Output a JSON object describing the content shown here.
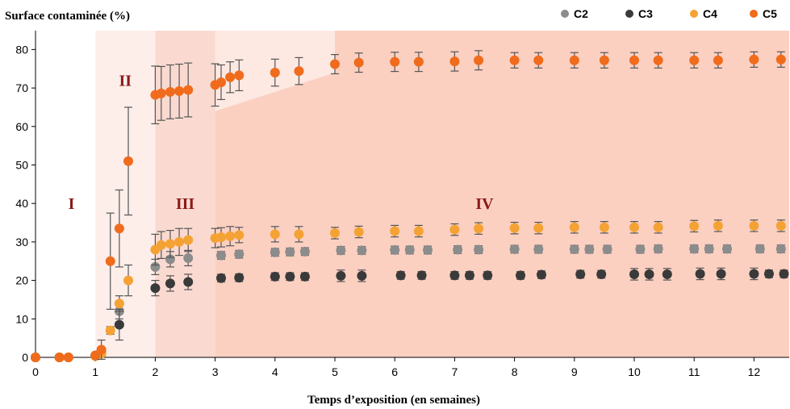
{
  "chart_data": {
    "type": "scatter",
    "title": "",
    "ylabel": "Surface contaminée (%)",
    "xlabel": "Temps d’exposition (en semaines)",
    "xlim": [
      0,
      12.5
    ],
    "ylim": [
      0,
      85
    ],
    "xticks": [
      "0",
      "1",
      "2",
      "3",
      "4",
      "5",
      "6",
      "7",
      "8",
      "9",
      "10",
      "11",
      "12"
    ],
    "yticks": [
      "0",
      "10",
      "20",
      "30",
      "40",
      "50",
      "60",
      "70",
      "80"
    ],
    "grid": false,
    "legend_position": "top-right",
    "regions": [
      {
        "label": "I",
        "x": 0.6,
        "y": 40
      },
      {
        "label": "II",
        "x": 1.5,
        "y": 72
      },
      {
        "label": "III",
        "x": 2.5,
        "y": 40
      },
      {
        "label": "IV",
        "x": 7.5,
        "y": 40
      }
    ],
    "series": [
      {
        "name": "C2",
        "color": "#8c8c8c",
        "points": [
          [
            0,
            0,
            0
          ],
          [
            0.4,
            0,
            0
          ],
          [
            0.55,
            0,
            0
          ],
          [
            1.0,
            0.5,
            0
          ],
          [
            1.1,
            1.5,
            0
          ],
          [
            1.4,
            12,
            2
          ],
          [
            2.0,
            23.5,
            2
          ],
          [
            2.25,
            25.5,
            2
          ],
          [
            2.55,
            25.8,
            2
          ],
          [
            3.1,
            26.5,
            1
          ],
          [
            3.4,
            26.8,
            1
          ],
          [
            4.0,
            27.3,
            1
          ],
          [
            4.25,
            27.4,
            1
          ],
          [
            4.5,
            27.5,
            1
          ],
          [
            5.1,
            27.8,
            1
          ],
          [
            5.45,
            27.8,
            1
          ],
          [
            6.0,
            27.9,
            1
          ],
          [
            6.25,
            27.9,
            1
          ],
          [
            6.55,
            27.9,
            1
          ],
          [
            7.05,
            28.0,
            1
          ],
          [
            7.4,
            28.0,
            1
          ],
          [
            8.0,
            28.1,
            1
          ],
          [
            8.4,
            28.1,
            1
          ],
          [
            9.0,
            28.1,
            1
          ],
          [
            9.25,
            28.1,
            1
          ],
          [
            9.55,
            28.1,
            1
          ],
          [
            10.1,
            28.1,
            1
          ],
          [
            10.4,
            28.2,
            1
          ],
          [
            11.0,
            28.2,
            1
          ],
          [
            11.25,
            28.2,
            1
          ],
          [
            11.55,
            28.2,
            1
          ],
          [
            12.1,
            28.2,
            1
          ],
          [
            12.45,
            28.2,
            1
          ]
        ]
      },
      {
        "name": "C3",
        "color": "#3a3a3a",
        "points": [
          [
            0,
            0,
            0
          ],
          [
            0.4,
            0,
            0
          ],
          [
            0.55,
            0,
            0
          ],
          [
            1.0,
            0.5,
            0
          ],
          [
            1.1,
            1.0,
            0
          ],
          [
            1.4,
            8.5,
            4
          ],
          [
            2.0,
            18,
            2
          ],
          [
            2.25,
            19.2,
            2
          ],
          [
            2.55,
            19.6,
            2
          ],
          [
            3.1,
            20.6,
            1
          ],
          [
            3.4,
            20.7,
            1
          ],
          [
            4.0,
            21.0,
            1
          ],
          [
            4.25,
            21.0,
            1
          ],
          [
            4.5,
            21.0,
            1
          ],
          [
            5.1,
            21.2,
            1.5
          ],
          [
            5.45,
            21.2,
            1.5
          ],
          [
            6.1,
            21.3,
            1
          ],
          [
            6.45,
            21.3,
            1
          ],
          [
            7.0,
            21.3,
            1
          ],
          [
            7.25,
            21.3,
            1
          ],
          [
            7.55,
            21.3,
            1
          ],
          [
            8.1,
            21.3,
            1
          ],
          [
            8.45,
            21.5,
            1
          ],
          [
            9.1,
            21.6,
            1
          ],
          [
            9.45,
            21.6,
            1
          ],
          [
            10.0,
            21.6,
            1.5
          ],
          [
            10.25,
            21.6,
            1.5
          ],
          [
            10.55,
            21.6,
            1.5
          ],
          [
            11.1,
            21.7,
            1.5
          ],
          [
            11.45,
            21.7,
            1.5
          ],
          [
            12.0,
            21.7,
            1.5
          ],
          [
            12.25,
            21.7,
            1
          ],
          [
            12.5,
            21.7,
            1
          ]
        ]
      },
      {
        "name": "C4",
        "color": "#f5a235",
        "points": [
          [
            0,
            0,
            0
          ],
          [
            0.4,
            0,
            0
          ],
          [
            0.55,
            0,
            0
          ],
          [
            1.0,
            0.3,
            0
          ],
          [
            1.1,
            1.0,
            0
          ],
          [
            1.25,
            7,
            1
          ],
          [
            1.4,
            14,
            2
          ],
          [
            1.55,
            20,
            4
          ],
          [
            2.0,
            28,
            4
          ],
          [
            2.1,
            29.2,
            3.5
          ],
          [
            2.25,
            29.5,
            3.5
          ],
          [
            2.4,
            30,
            3.5
          ],
          [
            2.55,
            30.5,
            3
          ],
          [
            3.0,
            31,
            2.5
          ],
          [
            3.1,
            31.2,
            2.5
          ],
          [
            3.25,
            31.5,
            2.5
          ],
          [
            3.4,
            31.8,
            2
          ],
          [
            4.0,
            32,
            2
          ],
          [
            4.4,
            32,
            2
          ],
          [
            5.0,
            32.3,
            1.5
          ],
          [
            5.4,
            32.6,
            1.5
          ],
          [
            6.0,
            32.8,
            1.5
          ],
          [
            6.4,
            32.8,
            1.5
          ],
          [
            7.0,
            33.2,
            1.5
          ],
          [
            7.4,
            33.5,
            1.5
          ],
          [
            8.0,
            33.6,
            1.5
          ],
          [
            8.4,
            33.6,
            1.5
          ],
          [
            9.0,
            33.8,
            1.5
          ],
          [
            9.5,
            33.8,
            1.5
          ],
          [
            10.0,
            33.8,
            1.5
          ],
          [
            10.4,
            33.8,
            1.5
          ],
          [
            11.0,
            34.1,
            1.5
          ],
          [
            11.4,
            34.2,
            1.5
          ],
          [
            12.0,
            34.2,
            1.5
          ],
          [
            12.45,
            34.2,
            1.5
          ]
        ]
      },
      {
        "name": "C5",
        "color": "#f06b1c",
        "points": [
          [
            0,
            0,
            0
          ],
          [
            0.4,
            0,
            0
          ],
          [
            0.55,
            0,
            0
          ],
          [
            1.0,
            0.5,
            0
          ],
          [
            1.1,
            2.0,
            2.5
          ],
          [
            1.25,
            25,
            12.5
          ],
          [
            1.4,
            33.5,
            10
          ],
          [
            1.55,
            51,
            14
          ],
          [
            2.0,
            68.2,
            7.5
          ],
          [
            2.1,
            68.6,
            7
          ],
          [
            2.25,
            69,
            7
          ],
          [
            2.4,
            69.2,
            7
          ],
          [
            2.55,
            69.5,
            7
          ],
          [
            3.0,
            70.8,
            5.5
          ],
          [
            3.1,
            71.5,
            4.5
          ],
          [
            3.25,
            72.8,
            4
          ],
          [
            3.4,
            73.3,
            4
          ],
          [
            4.0,
            74,
            3.5
          ],
          [
            4.4,
            74.4,
            3.5
          ],
          [
            5.0,
            76.2,
            2.5
          ],
          [
            5.4,
            76.6,
            2.5
          ],
          [
            6.0,
            76.8,
            2.5
          ],
          [
            6.4,
            76.8,
            2.5
          ],
          [
            7.0,
            76.9,
            2.5
          ],
          [
            7.4,
            77.2,
            2.5
          ],
          [
            8.0,
            77.2,
            2
          ],
          [
            8.4,
            77.2,
            2
          ],
          [
            9.0,
            77.2,
            2
          ],
          [
            9.5,
            77.2,
            2
          ],
          [
            10.0,
            77.2,
            2
          ],
          [
            10.4,
            77.2,
            2
          ],
          [
            11.0,
            77.2,
            2
          ],
          [
            11.4,
            77.2,
            2
          ],
          [
            12.0,
            77.4,
            2
          ],
          [
            12.45,
            77.4,
            2
          ]
        ]
      }
    ]
  }
}
